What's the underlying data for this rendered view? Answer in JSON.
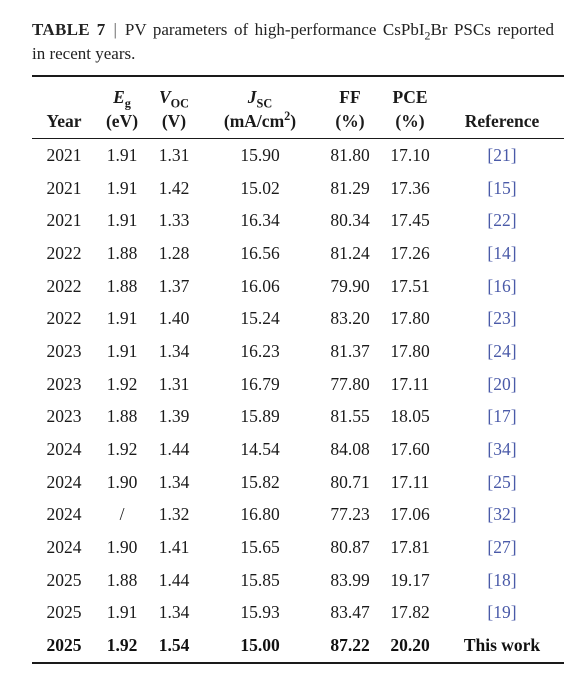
{
  "caption": {
    "label": "TABLE 7",
    "separator": "|",
    "text_before_sub": "PV parameters of high-performance CsPbI",
    "subscript": "2",
    "text_after_sub": "Br PSCs reported in recent years."
  },
  "table": {
    "headers": {
      "year": "Year",
      "eg_symbol": "E",
      "eg_sub": "g",
      "eg_unit": "(eV)",
      "voc_symbol": "V",
      "voc_sub": "OC",
      "voc_unit": "(V)",
      "jsc_symbol": "J",
      "jsc_sub": "SC",
      "jsc_unit_pre": "(mA/cm",
      "jsc_unit_sup": "2",
      "jsc_unit_post": ")",
      "ff": "FF",
      "ff_unit": "(%)",
      "pce": "PCE",
      "pce_unit": "(%)",
      "reference": "Reference"
    },
    "rows": [
      {
        "year": "2021",
        "eg": "1.91",
        "voc": "1.31",
        "jsc": "15.90",
        "ff": "81.80",
        "pce": "17.10",
        "ref": "[21]"
      },
      {
        "year": "2021",
        "eg": "1.91",
        "voc": "1.42",
        "jsc": "15.02",
        "ff": "81.29",
        "pce": "17.36",
        "ref": "[15]"
      },
      {
        "year": "2021",
        "eg": "1.91",
        "voc": "1.33",
        "jsc": "16.34",
        "ff": "80.34",
        "pce": "17.45",
        "ref": "[22]"
      },
      {
        "year": "2022",
        "eg": "1.88",
        "voc": "1.28",
        "jsc": "16.56",
        "ff": "81.24",
        "pce": "17.26",
        "ref": "[14]"
      },
      {
        "year": "2022",
        "eg": "1.88",
        "voc": "1.37",
        "jsc": "16.06",
        "ff": "79.90",
        "pce": "17.51",
        "ref": "[16]"
      },
      {
        "year": "2022",
        "eg": "1.91",
        "voc": "1.40",
        "jsc": "15.24",
        "ff": "83.20",
        "pce": "17.80",
        "ref": "[23]"
      },
      {
        "year": "2023",
        "eg": "1.91",
        "voc": "1.34",
        "jsc": "16.23",
        "ff": "81.37",
        "pce": "17.80",
        "ref": "[24]"
      },
      {
        "year": "2023",
        "eg": "1.92",
        "voc": "1.31",
        "jsc": "16.79",
        "ff": "77.80",
        "pce": "17.11",
        "ref": "[20]"
      },
      {
        "year": "2023",
        "eg": "1.88",
        "voc": "1.39",
        "jsc": "15.89",
        "ff": "81.55",
        "pce": "18.05",
        "ref": "[17]"
      },
      {
        "year": "2024",
        "eg": "1.92",
        "voc": "1.44",
        "jsc": "14.54",
        "ff": "84.08",
        "pce": "17.60",
        "ref": "[34]"
      },
      {
        "year": "2024",
        "eg": "1.90",
        "voc": "1.34",
        "jsc": "15.82",
        "ff": "80.71",
        "pce": "17.11",
        "ref": "[25]"
      },
      {
        "year": "2024",
        "eg": "/",
        "voc": "1.32",
        "jsc": "16.80",
        "ff": "77.23",
        "pce": "17.06",
        "ref": "[32]"
      },
      {
        "year": "2024",
        "eg": "1.90",
        "voc": "1.41",
        "jsc": "15.65",
        "ff": "80.87",
        "pce": "17.81",
        "ref": "[27]"
      },
      {
        "year": "2025",
        "eg": "1.88",
        "voc": "1.44",
        "jsc": "15.85",
        "ff": "83.99",
        "pce": "19.17",
        "ref": "[18]"
      },
      {
        "year": "2025",
        "eg": "1.91",
        "voc": "1.34",
        "jsc": "15.93",
        "ff": "83.47",
        "pce": "17.82",
        "ref": "[19]"
      },
      {
        "year": "2025",
        "eg": "1.92",
        "voc": "1.54",
        "jsc": "15.00",
        "ff": "87.22",
        "pce": "20.20",
        "ref": "This work"
      }
    ]
  },
  "colors": {
    "reference_link": "#4a5aa8",
    "text": "#1a1a1a"
  }
}
